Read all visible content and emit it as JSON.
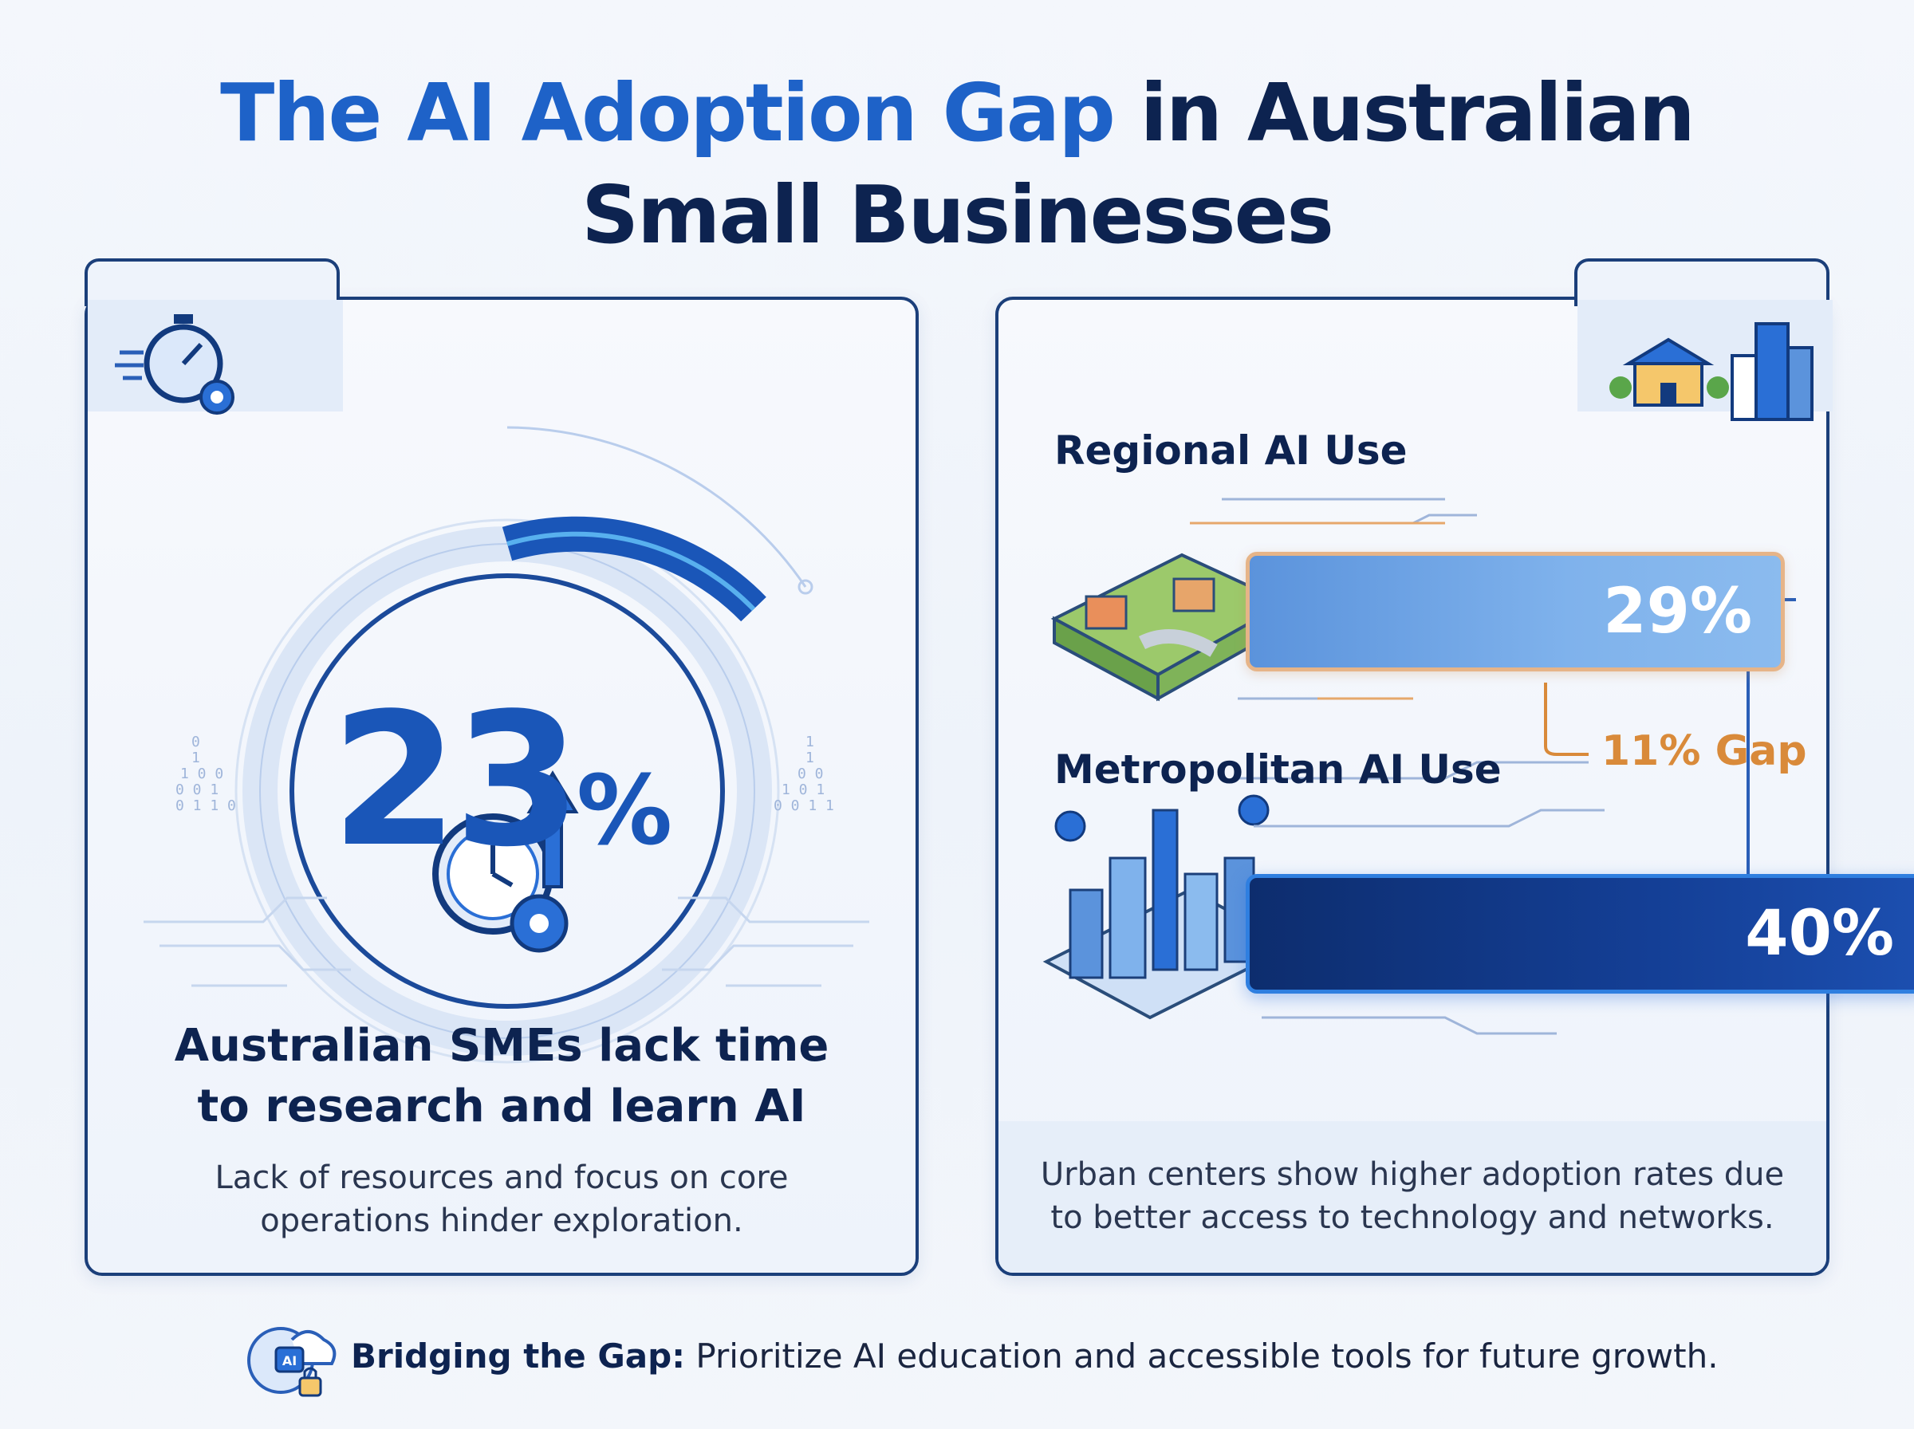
{
  "title": {
    "highlight": "The AI Adoption Gap",
    "rest_line1": " in Australian",
    "line2": "Small Businesses"
  },
  "left_card": {
    "stat_value": "23",
    "stat_unit": "%",
    "stat_fraction": 0.23,
    "headline_line1": "Australian SMEs lack time",
    "headline_line2": "to research and learn AI",
    "sub_line1": "Lack of resources and focus on core",
    "sub_line2": "operations hinder exploration."
  },
  "right_card": {
    "regional_label": "Regional AI Use",
    "regional_value": "29%",
    "metro_label": "Metropolitan AI Use",
    "metro_value": "40%",
    "gap_label": "11% Gap",
    "sub_line1": "Urban centers show higher adoption rates due",
    "sub_line2": "to better access to technology and networks."
  },
  "footer": {
    "lead": "Bridging the Gap:",
    "text": " Prioritize AI education and accessible tools for future growth.",
    "icon_badge": "AI"
  },
  "icons": [
    "stopwatch-gear-icon",
    "clock-gear-icon",
    "up-arrow-icon",
    "school-building-icon",
    "skyscraper-icon",
    "brain-cloud-lock-icon"
  ],
  "colors": {
    "primary": "#1e62c8",
    "navy": "#0d2350",
    "accent_orange": "#d98a3a",
    "light_blue": "#7fb2ec"
  }
}
